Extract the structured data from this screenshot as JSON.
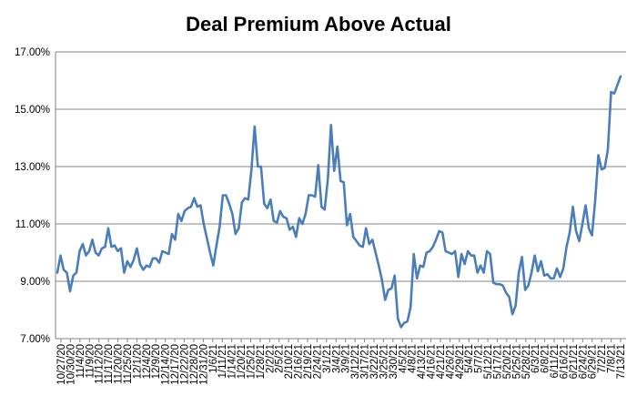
{
  "chart_data": {
    "type": "line",
    "title": "Deal Premium Above Actual",
    "xlabel": "",
    "ylabel": "",
    "ylim": [
      7.0,
      17.0
    ],
    "y_ticks": [
      "7.00%",
      "9.00%",
      "11.00%",
      "13.00%",
      "15.00%",
      "17.00%"
    ],
    "grid": "horizontal",
    "legend": "none",
    "line_color": "#4a7ebb",
    "x_tick_labels": [
      "10/27/20",
      "10/30/20",
      "11/4/20",
      "11/9/20",
      "11/12/20",
      "11/17/20",
      "11/20/20",
      "11/25/20",
      "12/1/20",
      "12/4/20",
      "12/9/20",
      "12/14/20",
      "12/17/20",
      "12/22/20",
      "12/28/20",
      "12/31/20",
      "1/6/21",
      "1/11/21",
      "1/14/21",
      "1/20/21",
      "1/25/21",
      "1/28/21",
      "2/2/21",
      "2/5/21",
      "2/10/21",
      "2/16/21",
      "2/19/21",
      "2/24/21",
      "3/1/21",
      "3/4/21",
      "3/9/21",
      "3/12/21",
      "3/17/21",
      "3/22/21",
      "3/25/21",
      "3/30/21",
      "4/5/21",
      "4/8/21",
      "4/13/21",
      "4/16/21",
      "4/21/21",
      "4/26/21",
      "4/29/21",
      "5/4/21",
      "5/7/21",
      "5/12/21",
      "5/17/21",
      "5/20/21",
      "5/25/21",
      "5/28/21",
      "6/3/21",
      "6/8/21",
      "6/11/21",
      "6/16/21",
      "6/21/21",
      "6/24/21",
      "6/29/21",
      "7/2/21",
      "7/8/21",
      "7/13/21"
    ],
    "series": [
      {
        "values": [
          9.3,
          9.9,
          9.4,
          9.3,
          8.65,
          9.2,
          9.3,
          10.05,
          10.3,
          9.9,
          10.05,
          10.45,
          10.0,
          9.9,
          10.15,
          10.2,
          10.85,
          10.2,
          10.25,
          10.05,
          10.15,
          9.3,
          9.7,
          9.5,
          9.75,
          10.15,
          9.6,
          9.4,
          9.55,
          9.5,
          9.8,
          9.8,
          9.65,
          10.05,
          10.0,
          9.95,
          10.65,
          10.45,
          11.35,
          11.1,
          11.45,
          11.55,
          11.6,
          11.9,
          11.6,
          11.65,
          11.0,
          10.5,
          10.0,
          9.55,
          10.25,
          10.9,
          12.0,
          12.0,
          11.7,
          11.35,
          10.65,
          10.85,
          11.75,
          11.9,
          11.85,
          12.9,
          14.4,
          13.0,
          13.0,
          11.7,
          11.55,
          11.85,
          11.1,
          11.05,
          11.45,
          11.25,
          11.2,
          10.8,
          10.9,
          10.55,
          11.2,
          11.0,
          11.35,
          12.0,
          12.0,
          11.95,
          13.05,
          11.6,
          11.5,
          12.55,
          14.45,
          12.85,
          13.7,
          12.5,
          12.45,
          10.95,
          11.35,
          10.55,
          10.4,
          10.25,
          10.2,
          10.85,
          10.3,
          10.45,
          10.0,
          9.55,
          9.05,
          8.35,
          8.7,
          8.75,
          9.2,
          7.7,
          7.4,
          7.55,
          7.6,
          8.1,
          9.95,
          9.1,
          9.55,
          9.5,
          10.0,
          10.05,
          10.2,
          10.45,
          10.75,
          10.7,
          10.05,
          10.0,
          9.95,
          10.05,
          9.15,
          9.95,
          9.6,
          10.05,
          9.9,
          9.9,
          9.3,
          9.55,
          9.3,
          10.05,
          9.95,
          8.95,
          8.9,
          8.9,
          8.85,
          8.6,
          8.45,
          7.85,
          8.15,
          9.3,
          9.85,
          8.7,
          8.85,
          9.3,
          9.9,
          9.35,
          9.7,
          9.2,
          9.25,
          9.1,
          9.1,
          9.45,
          9.15,
          9.45,
          10.2,
          10.7,
          11.6,
          10.75,
          10.4,
          11.0,
          11.65,
          10.85,
          10.6,
          11.8,
          13.4,
          12.9,
          12.95,
          13.6,
          15.6,
          15.55,
          15.85,
          16.15
        ]
      }
    ]
  }
}
